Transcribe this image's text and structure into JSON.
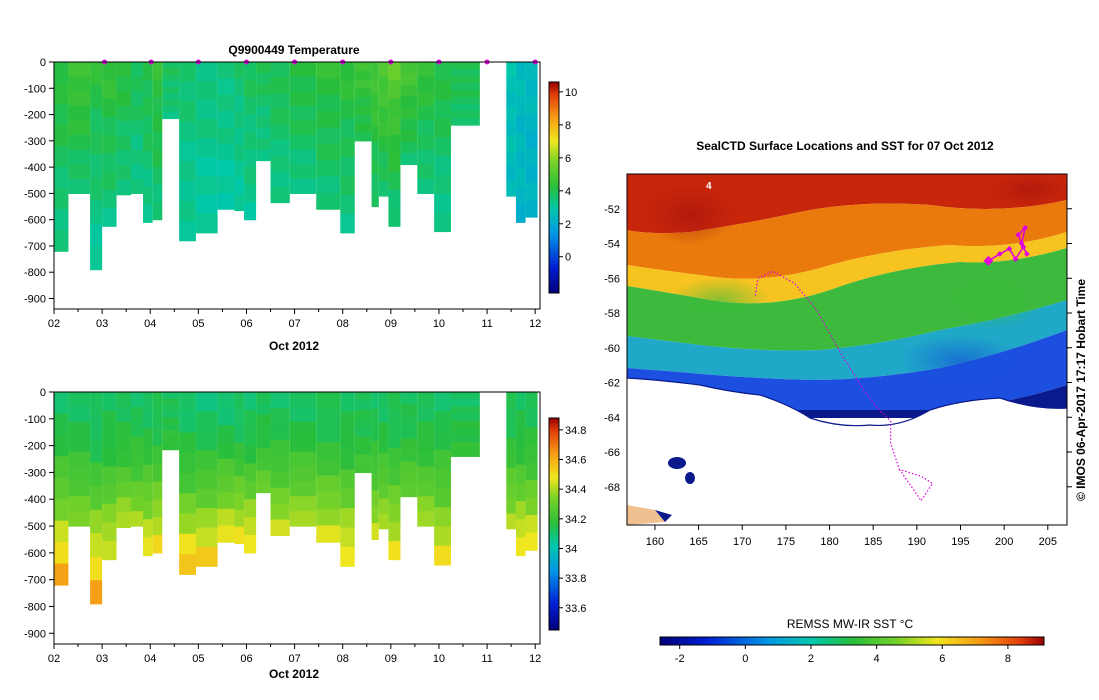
{
  "chart_data": [
    {
      "type": "heatmap",
      "title": "Q9900449  Temperature",
      "xlabel": "Oct 2012",
      "x_ticks": [
        "02",
        "03",
        "04",
        "05",
        "06",
        "07",
        "08",
        "09",
        "10",
        "11",
        "12"
      ],
      "xlim": [
        2,
        12.1
      ],
      "y_ticks": [
        "0",
        "-100",
        "-200",
        "-300",
        "-400",
        "-500",
        "-600",
        "-700",
        "-800",
        "-900"
      ],
      "ylim": [
        -940,
        0
      ],
      "colorbar": {
        "ticks": [
          "10",
          "8",
          "6",
          "4",
          "2",
          "0"
        ],
        "range": [
          -2.2,
          10.6
        ]
      },
      "profiles": [
        {
          "start": 2.0,
          "end": 2.3,
          "depth": 720,
          "surface": 4.3,
          "bottom": 3.3
        },
        {
          "start": 2.3,
          "end": 2.75,
          "depth": 500,
          "surface": 4.7,
          "bottom": 3.6
        },
        {
          "start": 2.75,
          "end": 3.0,
          "depth": 790,
          "surface": 4.2,
          "bottom": 3.1
        },
        {
          "start": 3.0,
          "end": 3.3,
          "depth": 625,
          "surface": 4.4,
          "bottom": 3.4
        },
        {
          "start": 3.3,
          "end": 3.6,
          "depth": 505,
          "surface": 4.2,
          "bottom": 3.4
        },
        {
          "start": 3.6,
          "end": 3.85,
          "depth": 500,
          "surface": 3.9,
          "bottom": 3.3
        },
        {
          "start": 3.85,
          "end": 4.05,
          "depth": 610,
          "surface": 4.1,
          "bottom": 3.3
        },
        {
          "start": 4.05,
          "end": 4.25,
          "depth": 600,
          "surface": 4.4,
          "bottom": 3.5
        },
        {
          "start": 4.25,
          "end": 4.6,
          "depth": 215,
          "surface": 3.8,
          "bottom": 3.5
        },
        {
          "start": 4.6,
          "end": 4.95,
          "depth": 680,
          "surface": 3.6,
          "bottom": 3.1
        },
        {
          "start": 4.95,
          "end": 5.4,
          "depth": 650,
          "surface": 3.5,
          "bottom": 3.0
        },
        {
          "start": 5.4,
          "end": 5.75,
          "depth": 560,
          "surface": 3.5,
          "bottom": 3.0
        },
        {
          "start": 5.75,
          "end": 5.95,
          "depth": 565,
          "surface": 3.6,
          "bottom": 3.1
        },
        {
          "start": 5.95,
          "end": 6.2,
          "depth": 600,
          "surface": 3.8,
          "bottom": 3.2
        },
        {
          "start": 6.2,
          "end": 6.5,
          "depth": 375,
          "surface": 3.9,
          "bottom": 3.3
        },
        {
          "start": 6.5,
          "end": 6.9,
          "depth": 535,
          "surface": 4.0,
          "bottom": 3.3
        },
        {
          "start": 6.9,
          "end": 7.45,
          "depth": 500,
          "surface": 4.2,
          "bottom": 3.4
        },
        {
          "start": 7.45,
          "end": 7.95,
          "depth": 560,
          "surface": 4.3,
          "bottom": 3.5
        },
        {
          "start": 7.95,
          "end": 8.25,
          "depth": 650,
          "surface": 4.3,
          "bottom": 3.4
        },
        {
          "start": 8.25,
          "end": 8.6,
          "depth": 300,
          "surface": 4.6,
          "bottom": 3.9
        },
        {
          "start": 8.6,
          "end": 8.75,
          "depth": 550,
          "surface": 4.8,
          "bottom": 3.6
        },
        {
          "start": 8.75,
          "end": 8.95,
          "depth": 510,
          "surface": 5.0,
          "bottom": 3.7
        },
        {
          "start": 8.95,
          "end": 9.2,
          "depth": 625,
          "surface": 5.2,
          "bottom": 3.5
        },
        {
          "start": 9.2,
          "end": 9.55,
          "depth": 390,
          "surface": 4.8,
          "bottom": 3.7
        },
        {
          "start": 9.55,
          "end": 9.9,
          "depth": 500,
          "surface": 4.4,
          "bottom": 3.4
        },
        {
          "start": 9.9,
          "end": 10.25,
          "depth": 645,
          "surface": 4.2,
          "bottom": 3.2
        },
        {
          "start": 10.25,
          "end": 10.85,
          "depth": 240,
          "surface": 4.0,
          "bottom": 3.7
        },
        {
          "start": 11.4,
          "end": 11.6,
          "depth": 510,
          "surface": 2.7,
          "bottom": 2.5
        },
        {
          "start": 11.6,
          "end": 11.8,
          "depth": 610,
          "surface": 2.5,
          "bottom": 2.3
        },
        {
          "start": 11.8,
          "end": 12.05,
          "depth": 590,
          "surface": 2.4,
          "bottom": 2.2
        }
      ],
      "surface_markers": [
        3.05,
        4.02,
        5.0,
        6.0,
        7.0,
        8.0,
        9.0,
        10.0,
        11.0,
        12.0
      ]
    },
    {
      "type": "heatmap",
      "title": "",
      "xlabel": "Oct 2012",
      "x_ticks": [
        "02",
        "03",
        "04",
        "05",
        "06",
        "07",
        "08",
        "09",
        "10",
        "11",
        "12"
      ],
      "xlim": [
        2,
        12.1
      ],
      "y_ticks": [
        "0",
        "-100",
        "-200",
        "-300",
        "-400",
        "-500",
        "-600",
        "-700",
        "-800",
        "-900"
      ],
      "ylim": [
        -940,
        0
      ],
      "colorbar": {
        "ticks": [
          "34.8",
          "34.6",
          "34.4",
          "34.2",
          "34",
          "33.8",
          "33.6"
        ],
        "range": [
          33.45,
          34.88
        ]
      },
      "profiles": [
        {
          "start": 2.0,
          "end": 2.3,
          "depth": 720,
          "surface": 34.12,
          "bottom": 34.6
        },
        {
          "start": 2.3,
          "end": 2.75,
          "depth": 500,
          "surface": 34.12,
          "bottom": 34.35
        },
        {
          "start": 2.75,
          "end": 3.0,
          "depth": 790,
          "surface": 34.1,
          "bottom": 34.62
        },
        {
          "start": 3.0,
          "end": 3.3,
          "depth": 625,
          "surface": 34.12,
          "bottom": 34.45
        },
        {
          "start": 3.3,
          "end": 3.6,
          "depth": 505,
          "surface": 34.12,
          "bottom": 34.4
        },
        {
          "start": 3.6,
          "end": 3.85,
          "depth": 500,
          "surface": 34.12,
          "bottom": 34.38
        },
        {
          "start": 3.85,
          "end": 4.05,
          "depth": 610,
          "surface": 34.12,
          "bottom": 34.48
        },
        {
          "start": 4.05,
          "end": 4.25,
          "depth": 600,
          "surface": 34.12,
          "bottom": 34.5
        },
        {
          "start": 4.25,
          "end": 4.6,
          "depth": 215,
          "surface": 34.12,
          "bottom": 34.2
        },
        {
          "start": 4.6,
          "end": 4.95,
          "depth": 680,
          "surface": 34.1,
          "bottom": 34.55
        },
        {
          "start": 4.95,
          "end": 5.4,
          "depth": 650,
          "surface": 34.1,
          "bottom": 34.52
        },
        {
          "start": 5.4,
          "end": 5.75,
          "depth": 560,
          "surface": 34.1,
          "bottom": 34.48
        },
        {
          "start": 5.75,
          "end": 5.95,
          "depth": 565,
          "surface": 34.1,
          "bottom": 34.48
        },
        {
          "start": 5.95,
          "end": 6.2,
          "depth": 600,
          "surface": 34.1,
          "bottom": 34.5
        },
        {
          "start": 6.2,
          "end": 6.5,
          "depth": 375,
          "surface": 34.12,
          "bottom": 34.3
        },
        {
          "start": 6.5,
          "end": 6.9,
          "depth": 535,
          "surface": 34.12,
          "bottom": 34.42
        },
        {
          "start": 6.9,
          "end": 7.45,
          "depth": 500,
          "surface": 34.12,
          "bottom": 34.4
        },
        {
          "start": 7.45,
          "end": 7.95,
          "depth": 560,
          "surface": 34.12,
          "bottom": 34.45
        },
        {
          "start": 7.95,
          "end": 8.25,
          "depth": 650,
          "surface": 34.12,
          "bottom": 34.5
        },
        {
          "start": 8.25,
          "end": 8.6,
          "depth": 300,
          "surface": 34.12,
          "bottom": 34.22
        },
        {
          "start": 8.6,
          "end": 8.75,
          "depth": 550,
          "surface": 34.12,
          "bottom": 34.42
        },
        {
          "start": 8.75,
          "end": 8.95,
          "depth": 510,
          "surface": 34.12,
          "bottom": 34.4
        },
        {
          "start": 8.95,
          "end": 9.2,
          "depth": 625,
          "surface": 34.12,
          "bottom": 34.48
        },
        {
          "start": 9.2,
          "end": 9.55,
          "depth": 390,
          "surface": 34.12,
          "bottom": 34.3
        },
        {
          "start": 9.55,
          "end": 9.9,
          "depth": 500,
          "surface": 34.12,
          "bottom": 34.38
        },
        {
          "start": 9.9,
          "end": 10.25,
          "depth": 645,
          "surface": 34.12,
          "bottom": 34.48
        },
        {
          "start": 10.25,
          "end": 10.85,
          "depth": 240,
          "surface": 34.12,
          "bottom": 34.2
        },
        {
          "start": 11.4,
          "end": 11.6,
          "depth": 510,
          "surface": 34.12,
          "bottom": 34.4
        },
        {
          "start": 11.6,
          "end": 11.8,
          "depth": 610,
          "surface": 34.12,
          "bottom": 34.5
        },
        {
          "start": 11.8,
          "end": 12.05,
          "depth": 590,
          "surface": 34.12,
          "bottom": 34.48
        }
      ]
    },
    {
      "type": "heatmap",
      "title": "SealCTD Surface Locations and SST for 07 Oct 2012",
      "x_ticks": [
        "160",
        "165",
        "170",
        "175",
        "180",
        "185",
        "190",
        "195",
        "200",
        "205"
      ],
      "xlim": [
        156.8,
        207.2
      ],
      "y_ticks": [
        "-52",
        "-54",
        "-56",
        "-58",
        "-60",
        "-62",
        "-64",
        "-66",
        "-68"
      ],
      "ylim": [
        -70.2,
        -50.0
      ],
      "colorbar_label": "REMSS MW-IR SST °C",
      "colorbar": {
        "ticks": [
          "-2",
          "0",
          "2",
          "4",
          "6",
          "8"
        ],
        "range": [
          -2.6,
          9.1
        ]
      },
      "side_text": "© IMOS 06-Apr-2017 17:17 Hobart Time",
      "marker_note": "4",
      "seal_track": [
        [
          198.2,
          -55.0
        ],
        [
          199.5,
          -54.6
        ],
        [
          200.6,
          -54.3
        ],
        [
          201.3,
          -54.9
        ],
        [
          202.2,
          -54.2
        ],
        [
          201.6,
          -53.5
        ],
        [
          202.4,
          -53.1
        ],
        [
          202.0,
          -54.0
        ],
        [
          202.6,
          -54.6
        ]
      ],
      "dotted_track": [
        [
          171.5,
          -57.0
        ],
        [
          171.8,
          -56.0
        ],
        [
          173.5,
          -55.6
        ],
        [
          176.0,
          -56.3
        ],
        [
          178.5,
          -57.8
        ],
        [
          181.5,
          -60.5
        ],
        [
          184.0,
          -62.5
        ],
        [
          185.5,
          -63.5
        ],
        [
          187.0,
          -64.2
        ],
        [
          187.0,
          -65.5
        ],
        [
          188.0,
          -67.0
        ],
        [
          190.5,
          -67.4
        ],
        [
          191.8,
          -67.8
        ],
        [
          190.5,
          -68.8
        ],
        [
          188.0,
          -67.0
        ]
      ]
    }
  ]
}
